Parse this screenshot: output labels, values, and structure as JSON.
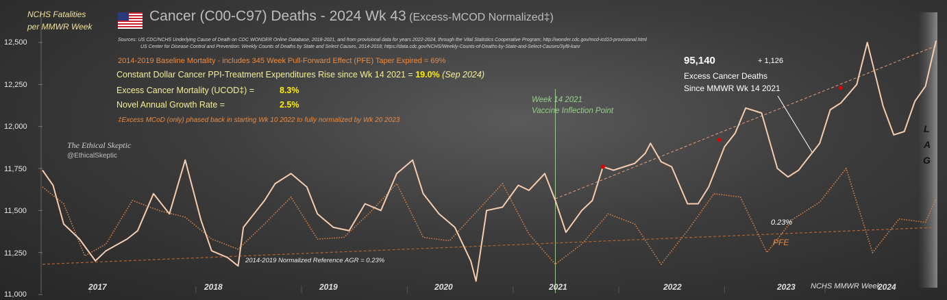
{
  "header": {
    "y_axis_title_line1": "NCHS Fatalities",
    "y_axis_title_line2": "per MMWR Week",
    "title_main": "Cancer (C00-C97) Deaths - 2024 Wk 43",
    "title_suffix": "(Excess-MCOD  Normalized‡)",
    "flag_icon": "us-flag-icon",
    "sources_line1": "Sources:  US CDC/NCHS Underlying  Cause of Death on CDC WONDER Online Database, 2018-2021, and from provisional data for years 2022-2024, through the Vital Statistics Cooperative Program; http://wonder.cdc.gov/mcd-icd10-provisional.html",
    "sources_line2": "US Center for Disease Control and Prevention:  Weekly  Counts of Deaths by State and Select Causes, 2014-2018; https://data.cdc.gov/NCHS/Weekly-Counts-of-Deaths-by-State-and-Select-Causes/3yf8-kanr"
  },
  "annotations": {
    "baseline_note": "2014-2019 Baseline Mortality - includes 345 Week Pull-Forward Effect (PFE) Taper Expired =  69%",
    "ppi_label": "Constant Dollar Cancer PPI-Treatment Expenditures Rise since Wk 14 2021  =",
    "ppi_value": "19.0%",
    "ppi_date": "(Sep 2024)",
    "excess_label": "Excess Cancer Mortality (UCOD‡) =",
    "excess_value": "8.3%",
    "growth_label": "Novel Annual  Growth  Rate  =",
    "growth_value": "2.5%",
    "footnote": "‡Excess  MCoD (only) phased back in starting  Wk 10 2022 to fully normalized  by Wk 20 2023",
    "brand_name": "The Ethical Skeptic",
    "brand_handle": "@EthicalSkeptic",
    "inflection_line1": "Week 14 2021",
    "inflection_line2": "Vaccine Inflection Point",
    "excess_deaths_count": "95,140",
    "excess_deaths_delta": "+  1,126",
    "excess_deaths_line1": "Excess Cancer Deaths",
    "excess_deaths_line2": "Since MMWR  Wk 14 2021",
    "reference_agr": "2014-2019 Normalized Reference AGR = 0.23%",
    "trend_pct": "0.23%",
    "pfe_label": "PFE",
    "lag_letters": [
      "L",
      "A",
      "G"
    ],
    "x_axis_title": "NCHS MMWR  Week"
  },
  "chart_data": {
    "type": "line",
    "ylim": [
      11000,
      12500
    ],
    "yticks": [
      "11,000",
      "11,250",
      "11,500",
      "11,750",
      "12,000",
      "12,250",
      "12,500"
    ],
    "xticks": [
      "2017",
      "2018",
      "2019",
      "2020",
      "2021",
      "2022",
      "2023",
      "2024"
    ],
    "grid": false,
    "colors": {
      "actual": "#f7cdb0",
      "baseline": "#d9834a",
      "trend": "#e8a07a",
      "reference": "#b5652f",
      "marker": "#e00000",
      "inflection": "#9ccf8f"
    },
    "series": [
      {
        "key": "actual",
        "x": [
          2016.0,
          2016.1,
          2016.2,
          2016.35,
          2016.5,
          2016.6,
          2016.8,
          2016.9,
          2017.05,
          2017.2,
          2017.35,
          2017.5,
          2017.6,
          2017.75,
          2017.85,
          2017.9,
          2018.1,
          2018.2,
          2018.35,
          2018.5,
          2018.6,
          2018.75,
          2018.9,
          2019.05,
          2019.2,
          2019.35,
          2019.5,
          2019.6,
          2019.75,
          2019.9,
          2020.05,
          2020.1,
          2020.2,
          2020.35,
          2020.5,
          2020.6,
          2020.75,
          2020.85,
          2020.95,
          2021.1,
          2021.2,
          2021.3,
          2021.4,
          2021.5,
          2021.6,
          2021.7,
          2021.75,
          2021.85,
          2021.95,
          2022.1,
          2022.2,
          2022.3,
          2022.45,
          2022.55,
          2022.65,
          2022.8,
          2022.95,
          2023.05,
          2023.15,
          2023.25,
          2023.35,
          2023.45,
          2023.55,
          2023.7,
          2023.8,
          2023.95,
          2024.05,
          2024.15,
          2024.25,
          2024.35,
          2024.45
        ],
        "y": [
          11740,
          11650,
          11420,
          11330,
          11200,
          11260,
          11330,
          11380,
          11600,
          11480,
          11800,
          11440,
          11260,
          11220,
          11170,
          11400,
          11560,
          11660,
          11720,
          11640,
          11480,
          11400,
          11380,
          11540,
          11500,
          11720,
          11800,
          11600,
          11480,
          11400,
          11200,
          11080,
          11500,
          11520,
          11650,
          11620,
          11720,
          11560,
          11370,
          11500,
          11560,
          11760,
          11740,
          11760,
          11780,
          11840,
          11900,
          11790,
          11760,
          11540,
          11540,
          11640,
          11880,
          11960,
          12110,
          12080,
          11750,
          11700,
          11740,
          11820,
          11900,
          12100,
          12140,
          12250,
          12500,
          12120,
          11950,
          11970,
          12150,
          12240,
          12510
        ]
      },
      {
        "key": "baseline",
        "x": [
          2016.0,
          2016.2,
          2016.4,
          2016.6,
          2016.85,
          2017.1,
          2017.35,
          2017.6,
          2017.85,
          2018.1,
          2018.35,
          2018.6,
          2018.85,
          2019.1,
          2019.35,
          2019.6,
          2019.85,
          2020.1,
          2020.35,
          2020.6,
          2020.85,
          2021.1,
          2021.35,
          2021.6,
          2021.85,
          2022.1,
          2022.35,
          2022.6,
          2022.85,
          2023.1,
          2023.35,
          2023.6,
          2023.85,
          2024.1,
          2024.35,
          2024.45
        ],
        "y": [
          11640,
          11540,
          11230,
          11300,
          11560,
          11500,
          11460,
          11330,
          11270,
          11420,
          11580,
          11330,
          11340,
          11490,
          11660,
          11340,
          11320,
          11490,
          11660,
          11360,
          11180,
          11300,
          11480,
          11420,
          11180,
          11380,
          11600,
          11580,
          11250,
          11450,
          11550,
          11750,
          11250,
          11450,
          11430,
          11570
        ]
      },
      {
        "key": "trend",
        "x": [
          2020.85,
          2024.45
        ],
        "y": [
          11570,
          12480
        ]
      },
      {
        "key": "reference",
        "x": [
          2016.0,
          2024.45
        ],
        "y": [
          11180,
          11400
        ]
      }
    ],
    "markers": [
      {
        "x": 2021.3,
        "y": 11760
      },
      {
        "x": 2022.4,
        "y": 11920
      },
      {
        "x": 2023.55,
        "y": 12230
      }
    ],
    "inflection_x": 2020.85
  }
}
